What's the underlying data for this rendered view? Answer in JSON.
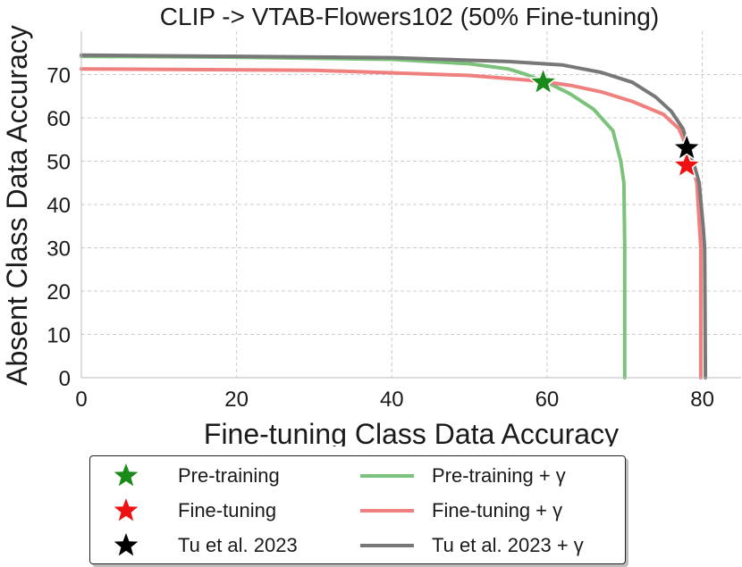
{
  "chart_data": {
    "type": "line",
    "title": "CLIP -> VTAB-Flowers102 (50% Fine-tuning)",
    "xlabel": "Fine-tuning Class Data Accuracy",
    "ylabel": "Absent Class Data Accuracy",
    "xlim": [
      0,
      85
    ],
    "ylim": [
      0,
      80
    ],
    "xticks": [
      0,
      20,
      40,
      60,
      80
    ],
    "yticks": [
      0,
      10,
      20,
      30,
      40,
      50,
      60,
      70
    ],
    "grid": true,
    "legend_position": "bottom",
    "series": [
      {
        "name": "Pre-training + γ",
        "color": "#7cc27c",
        "points": [
          [
            0,
            74.2
          ],
          [
            20,
            74.0
          ],
          [
            40,
            73.5
          ],
          [
            50,
            72.5
          ],
          [
            55,
            71.3
          ],
          [
            57,
            70.2
          ],
          [
            60,
            68.2
          ],
          [
            63,
            65.5
          ],
          [
            66,
            62
          ],
          [
            68.5,
            57
          ],
          [
            69.5,
            50
          ],
          [
            69.9,
            45
          ],
          [
            70,
            30
          ],
          [
            70,
            0
          ]
        ]
      },
      {
        "name": "Fine-tuning + γ",
        "color": "#f08080",
        "points": [
          [
            0,
            71.3
          ],
          [
            30,
            71.0
          ],
          [
            50,
            69.8
          ],
          [
            59,
            68.5
          ],
          [
            63,
            67.5
          ],
          [
            67,
            66
          ],
          [
            71,
            63.8
          ],
          [
            75,
            60.8
          ],
          [
            77,
            57.5
          ],
          [
            78.3,
            52
          ],
          [
            79.3,
            45
          ],
          [
            79.8,
            30
          ],
          [
            79.8,
            0
          ]
        ]
      },
      {
        "name": "Tu et al. 2023 + γ",
        "color": "#787878",
        "points": [
          [
            0,
            74.5
          ],
          [
            40,
            73.9
          ],
          [
            55,
            73.0
          ],
          [
            62,
            72.2
          ],
          [
            67,
            70.5
          ],
          [
            71,
            68.2
          ],
          [
            74,
            64.8
          ],
          [
            76,
            61.5
          ],
          [
            77.5,
            57.5
          ],
          [
            78.5,
            52
          ],
          [
            79.6,
            45
          ],
          [
            80.1,
            35
          ],
          [
            80.3,
            30
          ],
          [
            80.4,
            0
          ]
        ]
      }
    ],
    "markers": [
      {
        "name": "Pre-training",
        "x": 59.5,
        "y": 68.2,
        "color": "#1a8a1a"
      },
      {
        "name": "Fine-tuning",
        "x": 78,
        "y": 49,
        "color": "#ee1111"
      },
      {
        "name": "Tu et al. 2023",
        "x": 78,
        "y": 53,
        "color": "#000000"
      }
    ]
  },
  "legend": {
    "items": [
      {
        "label": "Pre-training",
        "kind": "star",
        "color": "#1a8a1a"
      },
      {
        "label": "Fine-tuning",
        "kind": "star",
        "color": "#ee1111"
      },
      {
        "label": "Tu et al. 2023",
        "kind": "star",
        "color": "#000000"
      },
      {
        "label": "Pre-training + γ",
        "kind": "line",
        "color": "#7cc27c"
      },
      {
        "label": "Fine-tuning + γ",
        "kind": "line",
        "color": "#f08080"
      },
      {
        "label": "Tu et al. 2023 + γ",
        "kind": "line",
        "color": "#787878"
      }
    ]
  }
}
